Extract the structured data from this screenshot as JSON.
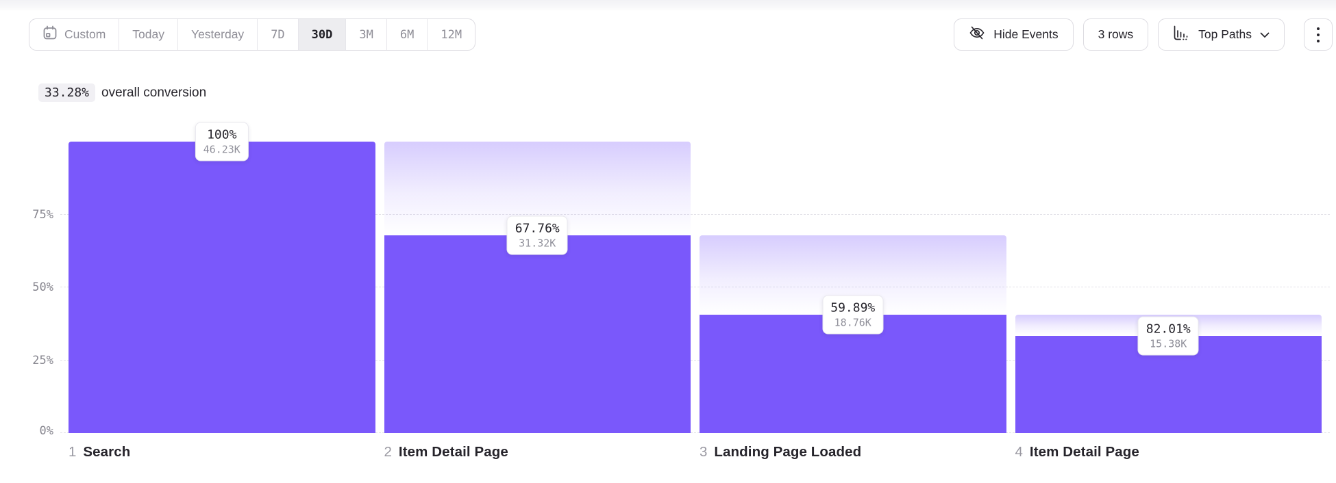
{
  "toolbar": {
    "date_picker": {
      "items": [
        {
          "label": "Custom",
          "icon": "calendar-icon",
          "selected": false,
          "mono": false
        },
        {
          "label": "Today",
          "selected": false,
          "mono": false
        },
        {
          "label": "Yesterday",
          "selected": false,
          "mono": false
        },
        {
          "label": "7D",
          "selected": false,
          "mono": true
        },
        {
          "label": "30D",
          "selected": true,
          "mono": true
        },
        {
          "label": "3M",
          "selected": false,
          "mono": true
        },
        {
          "label": "6M",
          "selected": false,
          "mono": true
        },
        {
          "label": "12M",
          "selected": false,
          "mono": true
        }
      ],
      "selected_value": "30D"
    },
    "hide_events": {
      "label": "Hide Events",
      "icon": "eye-off-icon"
    },
    "rows_button": {
      "label": "3 rows"
    },
    "top_paths": {
      "label": "Top Paths",
      "icon": "histogram-icon",
      "chevron": "chevron-down-icon"
    },
    "more_menu": {
      "icon": "kebab-icon"
    }
  },
  "summary": {
    "value": "33.28%",
    "label": "overall conversion"
  },
  "chart_data": {
    "type": "bar",
    "subtype": "funnel",
    "overall_conversion": "33.28%",
    "ylim": [
      0,
      100
    ],
    "grid": "dashed horizontal lines at 0/25/50/75, legend none",
    "y_ticks": [
      {
        "label": "0%",
        "value": 0
      },
      {
        "label": "25%",
        "value": 25
      },
      {
        "label": "50%",
        "value": 50
      },
      {
        "label": "75%",
        "value": 75
      }
    ],
    "steps": [
      {
        "num": "1",
        "label": "Search",
        "conversion_pct_label": "100%",
        "count_label": "46.23K",
        "count": 46230,
        "overall_pct": 100,
        "prev_overall_pct": null
      },
      {
        "num": "2",
        "label": "Item Detail Page",
        "conversion_pct_label": "67.76%",
        "count_label": "31.32K",
        "count": 31320,
        "overall_pct": 67.76,
        "prev_overall_pct": 100
      },
      {
        "num": "3",
        "label": "Landing Page Loaded",
        "conversion_pct_label": "59.89%",
        "count_label": "18.76K",
        "count": 18760,
        "overall_pct": 40.58,
        "prev_overall_pct": 67.76
      },
      {
        "num": "4",
        "label": "Item Detail Page",
        "conversion_pct_label": "82.01%",
        "count_label": "15.38K",
        "count": 15380,
        "overall_pct": 33.27,
        "prev_overall_pct": 40.58
      }
    ],
    "colors": {
      "bar": "#7a58fb",
      "ghost_gradient_top": "rgba(122,88,251,0.30)",
      "grid": "#e3e2e8",
      "badge_pct_text": "#26242b",
      "badge_count_text": "#90909a"
    }
  }
}
